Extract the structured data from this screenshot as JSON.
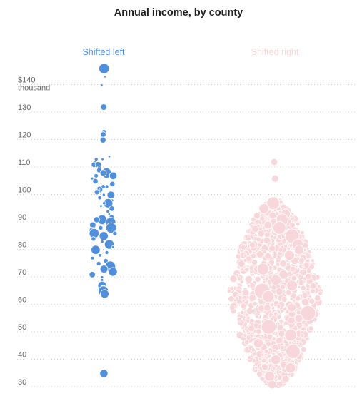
{
  "chart_data": {
    "type": "scatter",
    "title": "Annual income, by county",
    "ylim": [
      28,
      146
    ],
    "y_ticks": [
      {
        "value": 30,
        "label": "30"
      },
      {
        "value": 40,
        "label": "40"
      },
      {
        "value": 50,
        "label": "50"
      },
      {
        "value": 60,
        "label": "60"
      },
      {
        "value": 70,
        "label": "70"
      },
      {
        "value": 80,
        "label": "80"
      },
      {
        "value": 90,
        "label": "90"
      },
      {
        "value": 100,
        "label": "100"
      },
      {
        "value": 110,
        "label": "110"
      },
      {
        "value": 120,
        "label": "120"
      },
      {
        "value": 130,
        "label": "130"
      },
      {
        "value": 140,
        "label": "$140",
        "label2": "thousand"
      }
    ],
    "grid": true,
    "series": [
      {
        "name": "Shifted left",
        "color": "#4f8fdb",
        "values": [
          144,
          141,
          138,
          130,
          121,
          120,
          118,
          112,
          111,
          111,
          110,
          109,
          109,
          108,
          107,
          106,
          106,
          105,
          105,
          104,
          103,
          102,
          101,
          101,
          100,
          100,
          99,
          98,
          98,
          97,
          96,
          95,
          95,
          94,
          93,
          92,
          91,
          90,
          89,
          89,
          88,
          87,
          87,
          86,
          86,
          85,
          84,
          84,
          83,
          82,
          81,
          80,
          79,
          78,
          77,
          76,
          75,
          74,
          73,
          72,
          71,
          70,
          69,
          68,
          67,
          66,
          65,
          64,
          63,
          62,
          33
        ]
      },
      {
        "name": "Shifted right",
        "color": "#f8d7da",
        "values": [
          110,
          104,
          95,
          93,
          91,
          89,
          87,
          86,
          83,
          80,
          78,
          76,
          73,
          71,
          69,
          67,
          65,
          63,
          61,
          59,
          57,
          55,
          53,
          50,
          47,
          44,
          41,
          38,
          35,
          32,
          29
        ]
      }
    ]
  }
}
